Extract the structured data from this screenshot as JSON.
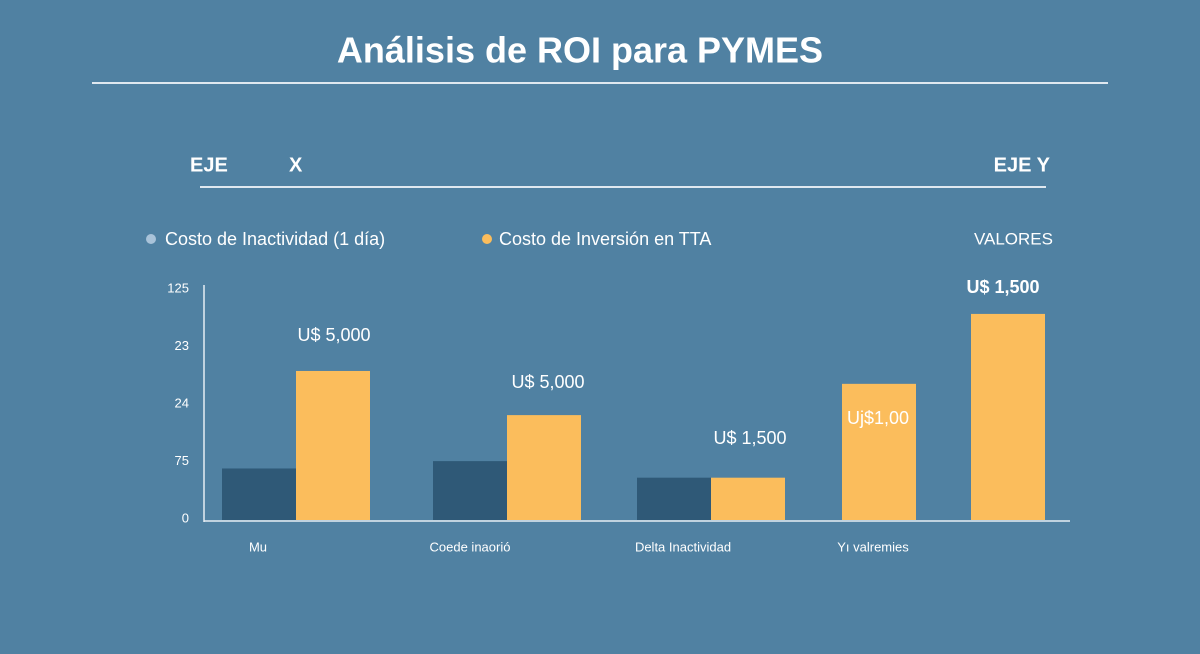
{
  "chart_data": {
    "type": "bar",
    "title": "Análisis de  ROI para PYMES",
    "header_left": [
      "EJE",
      "X"
    ],
    "header_right": "EJE Y",
    "y_label": "VALORES",
    "categories": [
      "Mu",
      "Coede inaorió",
      "Delta Inactividad",
      "Yı valremies",
      null
    ],
    "series": [
      {
        "name": "Costo de Inactividad (1 día)",
        "color": "#2f5977",
        "values": [
          28,
          32,
          23,
          null,
          null
        ]
      },
      {
        "name": "Costo de Inversión en TTA",
        "color": "#fbbd5c",
        "values": [
          81,
          57,
          23,
          74,
          112
        ]
      }
    ],
    "annotations": [
      "U$ 5,000",
      "U$ 5,000",
      "U$ 1,500",
      "Uj$1,00",
      "U$ 1,500"
    ],
    "y_axis_labels": [
      "0",
      "75",
      "24",
      "23",
      "125"
    ],
    "ylim": [
      0,
      125
    ]
  }
}
